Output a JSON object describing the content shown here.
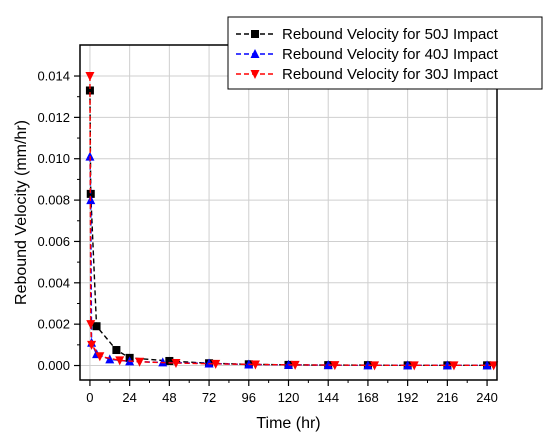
{
  "chart_data": {
    "type": "line",
    "xlabel": "Time (hr)",
    "ylabel": "Rebound Velocity (mm/hr)",
    "xlim": [
      -6,
      246
    ],
    "ylim": [
      -0.0007,
      0.0155
    ],
    "xticks": [
      0,
      24,
      48,
      72,
      96,
      120,
      144,
      168,
      192,
      216,
      240
    ],
    "yticks": [
      0.0,
      0.002,
      0.004,
      0.006,
      0.008,
      0.01,
      0.012,
      0.014
    ],
    "ytick_labels": [
      "0.000",
      "0.002",
      "0.004",
      "0.006",
      "0.008",
      "0.010",
      "0.012",
      "0.014"
    ],
    "grid": true,
    "legend_position": "top-right",
    "series": [
      {
        "name": "Rebound Velocity for 50J Impact",
        "color": "#000000",
        "marker": "square",
        "x": [
          0,
          0.5,
          4,
          16,
          24,
          48,
          72,
          96,
          120,
          144,
          168,
          192,
          216,
          240
        ],
        "y": [
          0.0133,
          0.0083,
          0.0019,
          0.00075,
          0.00037,
          0.00022,
          0.00011,
          6e-05,
          3e-05,
          2e-05,
          2e-05,
          1e-05,
          1e-05,
          1e-05
        ]
      },
      {
        "name": "Rebound Velocity for 40J Impact",
        "color": "#0000ff",
        "marker": "triangle-up",
        "x": [
          0,
          0.5,
          1,
          4,
          12,
          24,
          44,
          72,
          96,
          120,
          144,
          168,
          192,
          216,
          240
        ],
        "y": [
          0.0101,
          0.008,
          0.0011,
          0.00055,
          0.0003,
          0.0002,
          0.00015,
          0.0001,
          5e-05,
          3e-05,
          2e-05,
          1e-05,
          1e-05,
          1e-05,
          1e-05
        ]
      },
      {
        "name": "Rebound Velocity for 30J Impact",
        "color": "#ff0000",
        "marker": "triangle-down",
        "x": [
          0,
          0.5,
          1,
          6,
          18,
          30,
          52,
          76,
          100,
          124,
          148,
          172,
          196,
          220,
          244
        ],
        "y": [
          0.014,
          0.002,
          0.001,
          0.00045,
          0.00025,
          0.00018,
          0.00012,
          8e-05,
          5e-05,
          3e-05,
          2e-05,
          1e-05,
          1e-05,
          1e-05,
          1e-05
        ]
      }
    ]
  }
}
